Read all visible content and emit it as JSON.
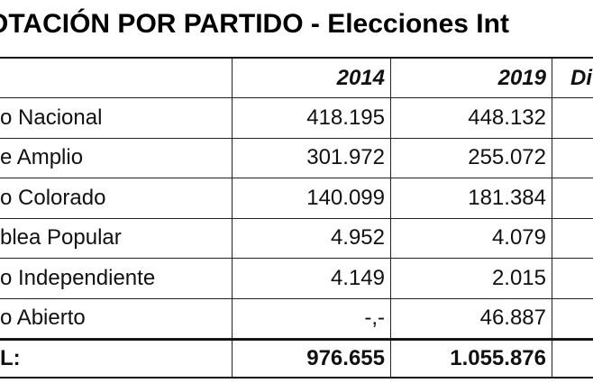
{
  "header": {
    "title": "OTACIÓN POR PARTIDO - Elecciones Int"
  },
  "table": {
    "columns": [
      "2014",
      "2019",
      "Di"
    ],
    "rows": [
      [
        "o Nacional",
        "418.195",
        "448.132"
      ],
      [
        "e Amplio",
        "301.972",
        "255.072"
      ],
      [
        "o Colorado",
        "140.099",
        "181.384"
      ],
      [
        "blea Popular",
        "4.952",
        "4.079"
      ],
      [
        "o Independiente",
        "4.149",
        "2.015"
      ],
      [
        "o Abierto",
        "-,-",
        "46.887"
      ]
    ],
    "total": [
      "L:",
      "976.655",
      "1.055.876"
    ]
  }
}
